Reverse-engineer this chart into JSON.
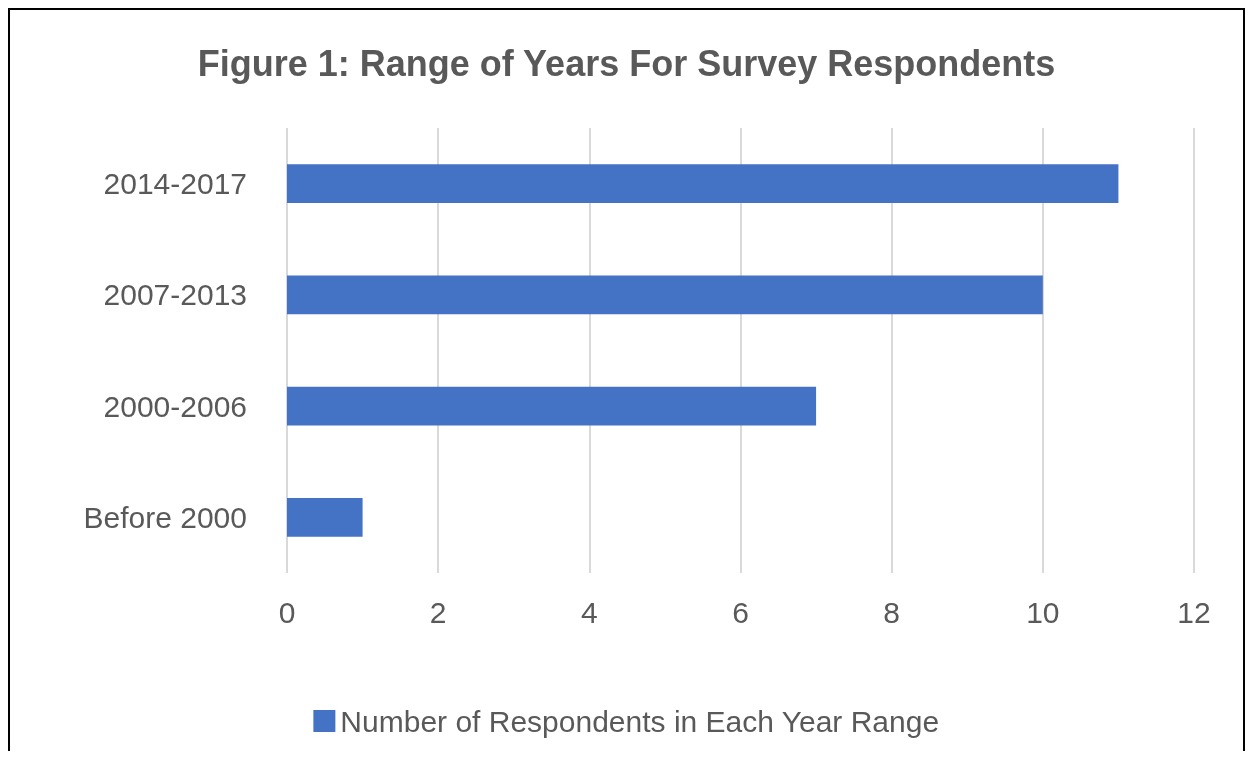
{
  "chart_data": {
    "type": "bar",
    "orientation": "horizontal",
    "title": "Figure 1: Range of Years For Survey Respondents",
    "categories": [
      "2014-2017",
      "2007-2013",
      "2000-2006",
      "Before 2000"
    ],
    "series": [
      {
        "name": "Number of Respondents in Each Year Range",
        "color": "#4472c4",
        "values": [
          11,
          10,
          7,
          1
        ]
      }
    ],
    "xlim": [
      0,
      12
    ],
    "xticks": [
      0,
      2,
      4,
      6,
      8,
      10,
      12
    ],
    "grid": "x",
    "legend": "bottom"
  }
}
